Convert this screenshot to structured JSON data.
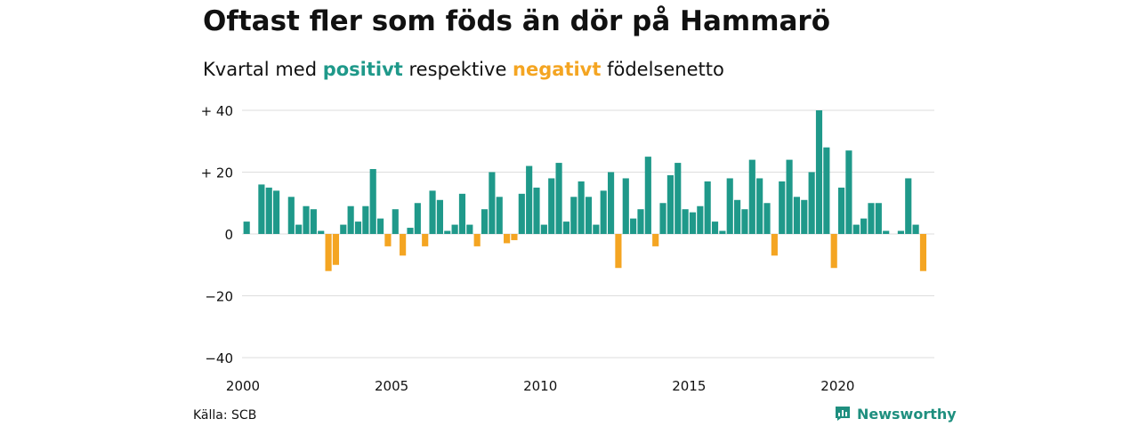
{
  "title": "Oftast fler som föds än dör på Hammarö",
  "subtitle": {
    "prefix": "Kvartal med ",
    "positive_word": "positivt",
    "middle": " respektive ",
    "negative_word": "negativt",
    "suffix": " födelsenetto"
  },
  "colors": {
    "positive": "#1f998a",
    "negative": "#f4a522",
    "grid": "#dddddd",
    "text": "#111111"
  },
  "source": "Källa: SCB",
  "brand": {
    "name": "Newsworthy",
    "icon": "newsworthy-logo-icon"
  },
  "chart_data": {
    "type": "bar",
    "x_start": 2000,
    "x_step": 0.25,
    "xlim": [
      2000,
      2023.25
    ],
    "ylim": [
      -40,
      40
    ],
    "y_ticks": [
      {
        "value": 40,
        "label": "+ 40"
      },
      {
        "value": 20,
        "label": "+ 20"
      },
      {
        "value": 0,
        "label": "0"
      },
      {
        "value": -20,
        "label": "−20"
      },
      {
        "value": -40,
        "label": "−40"
      }
    ],
    "x_ticks": [
      2000,
      2005,
      2010,
      2015,
      2020
    ],
    "grid": true,
    "legend": "none",
    "values": [
      4,
      0,
      16,
      15,
      14,
      0,
      12,
      3,
      9,
      8,
      1,
      -12,
      -10,
      3,
      9,
      4,
      9,
      21,
      5,
      -4,
      8,
      -7,
      2,
      10,
      -4,
      14,
      11,
      1,
      3,
      13,
      3,
      -4,
      8,
      20,
      12,
      -3,
      -2,
      13,
      22,
      15,
      3,
      18,
      23,
      4,
      12,
      17,
      12,
      3,
      14,
      20,
      -11,
      18,
      5,
      8,
      25,
      -4,
      10,
      19,
      23,
      8,
      7,
      9,
      17,
      4,
      1,
      18,
      11,
      8,
      24,
      18,
      10,
      -7,
      17,
      24,
      12,
      11,
      20,
      40,
      28,
      -11,
      15,
      27,
      3,
      5,
      10,
      10,
      1,
      0,
      1,
      18,
      3,
      -12
    ]
  }
}
